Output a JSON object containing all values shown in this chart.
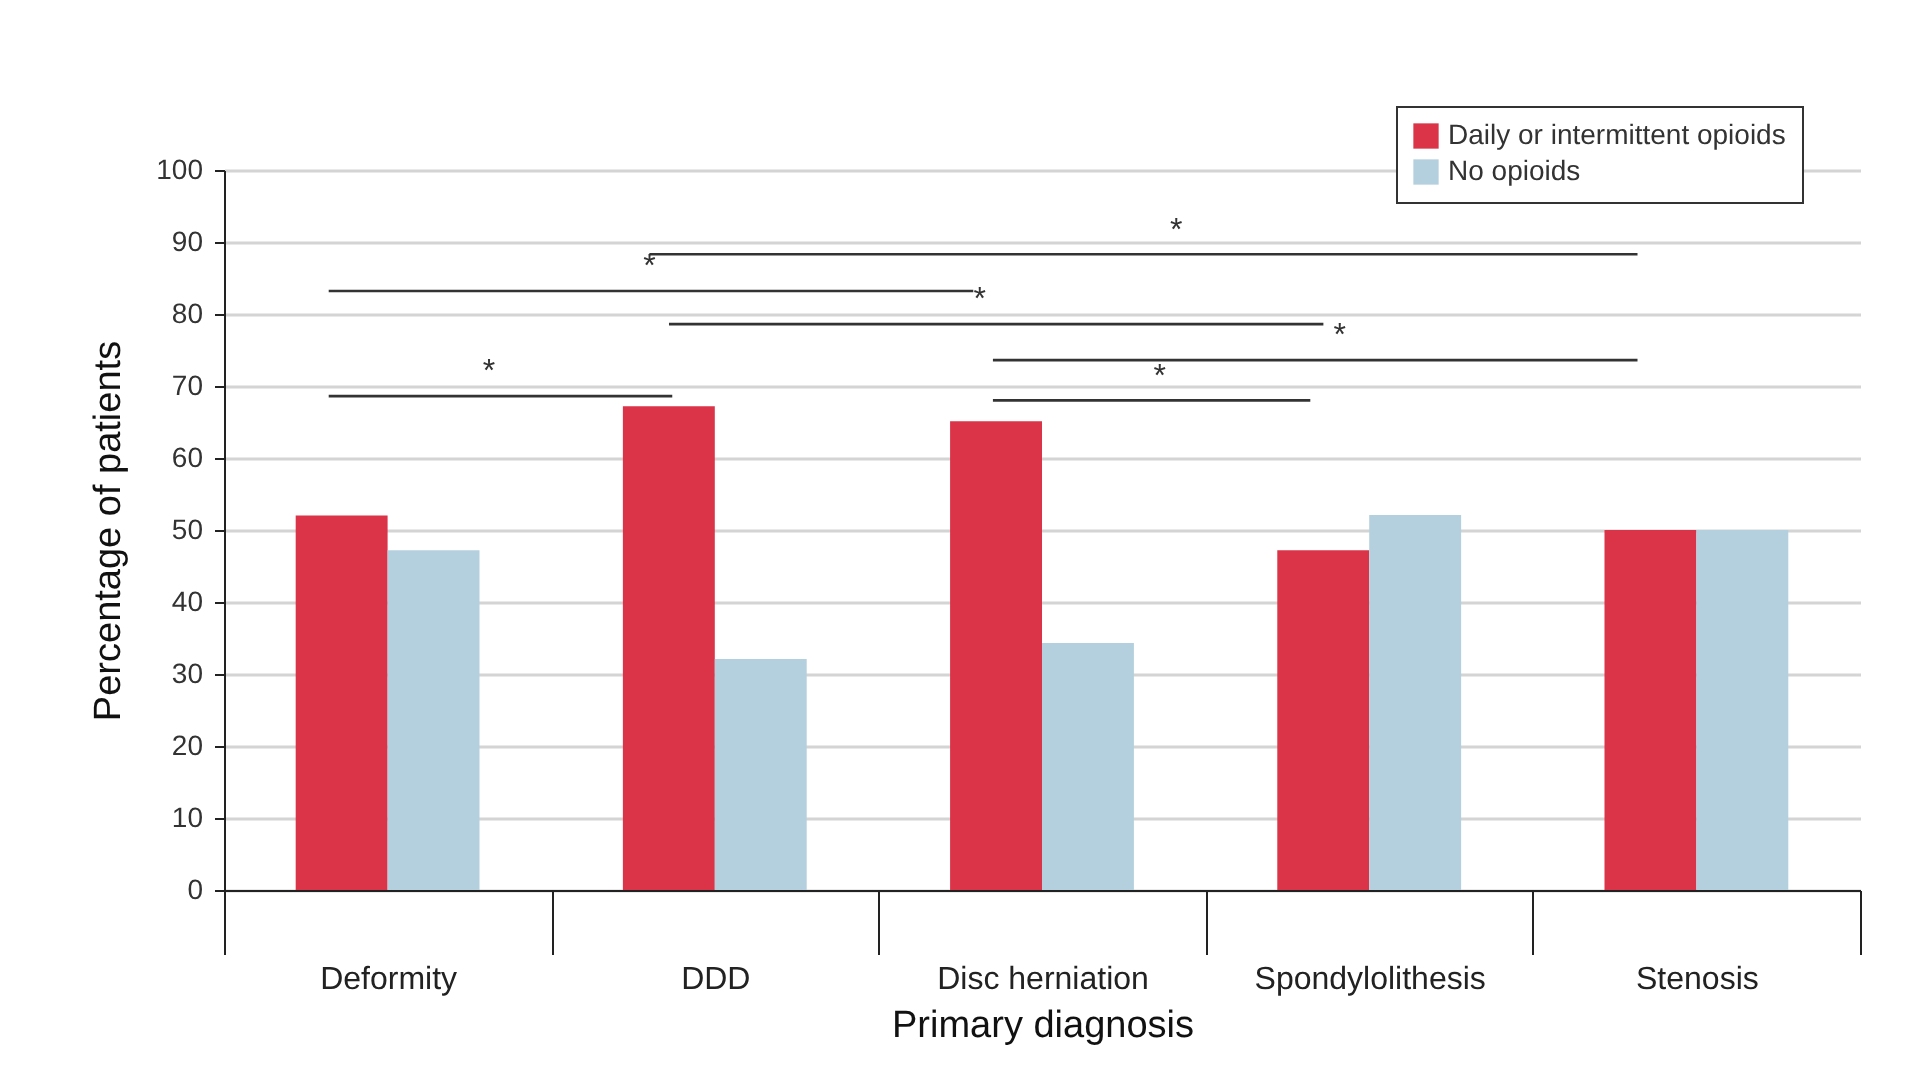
{
  "chart_data": {
    "type": "bar",
    "categories": [
      "Deformity",
      "DDD",
      "Disc herniation",
      "Spondylolithesis",
      "Stenosis"
    ],
    "series": [
      {
        "name": "Daily or intermittent opioids",
        "color": "#db3347",
        "values": [
          52.0,
          67.2,
          65.1,
          47.2,
          50.0
        ]
      },
      {
        "name": "No opioids",
        "color": "#b4d0de",
        "values": [
          47.2,
          32.1,
          34.3,
          52.1,
          50.0
        ]
      }
    ],
    "xlabel": "Primary diagnosis",
    "ylabel": "Percentage of patients",
    "ylim": [
      0,
      100
    ],
    "yticks": [
      0,
      10,
      20,
      30,
      40,
      50,
      60,
      70,
      80,
      90,
      100
    ],
    "grid": "y",
    "legend": "top right",
    "annotations": [
      "*",
      "*",
      "*",
      "*",
      "*",
      "*"
    ]
  }
}
